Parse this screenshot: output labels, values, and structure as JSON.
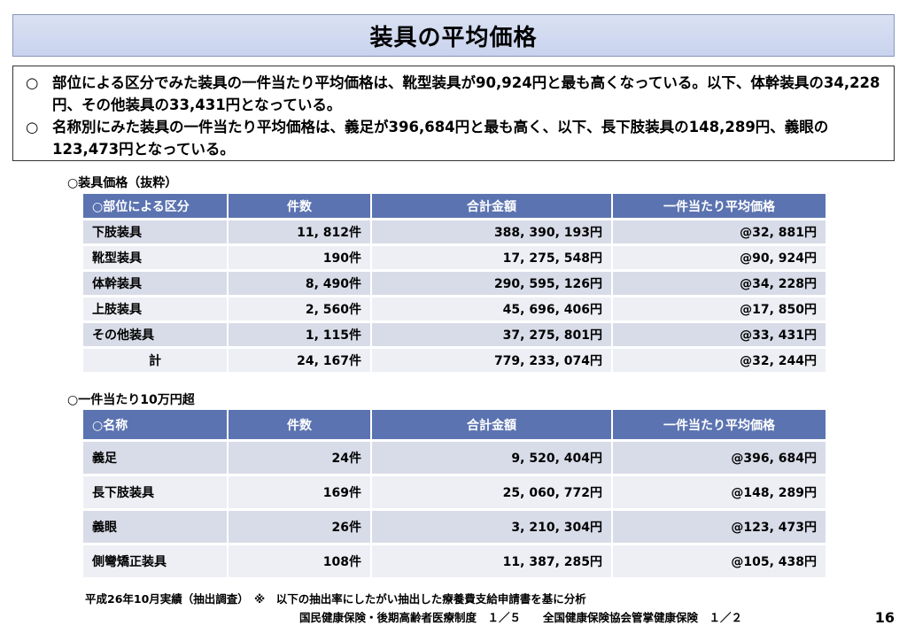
{
  "title": "装具の平均価格",
  "summary": {
    "bullet": "○",
    "items": [
      "部位による区分でみた装具の一件当たり平均価格は、靴型装具が90,924円と最も高くなっている。以下、体幹装具の34,228円、その他装具の33,431円となっている。",
      "名称別にみた装具の一件当たり平均価格は、義足が396,684円と最も高く、以下、長下肢装具の148,289円、義眼の123,473円となっている。"
    ]
  },
  "table1": {
    "label": "○装具価格（抜粋）",
    "headers": [
      "○部位による区分",
      "件数",
      "合計金額",
      "一件当たり平均価格"
    ],
    "rows": [
      [
        "下肢装具",
        "11, 812件",
        "388, 390, 193円",
        "@32, 881円"
      ],
      [
        "靴型装具",
        "190件",
        "17, 275, 548円",
        "@90, 924円"
      ],
      [
        "体幹装具",
        "8, 490件",
        "290, 595, 126円",
        "@34, 228円"
      ],
      [
        "上肢装具",
        "2, 560件",
        "45, 696, 406円",
        "@17, 850円"
      ],
      [
        "その他装具",
        "1, 115件",
        "37, 275, 801円",
        "@33, 431円"
      ],
      [
        "計",
        "24, 167件",
        "779, 233, 074円",
        "@32, 244円"
      ]
    ]
  },
  "table2": {
    "label": "○一件当たり10万円超",
    "headers": [
      "○名称",
      "件数",
      "合計金額",
      "一件当たり平均価格"
    ],
    "rows": [
      [
        "義足",
        "24件",
        "9, 520, 404円",
        "@396, 684円"
      ],
      [
        "長下肢装具",
        "169件",
        "25, 060, 772円",
        "@148, 289円"
      ],
      [
        "義眼",
        "26件",
        "3, 210, 304円",
        "@123, 473円"
      ],
      [
        "側彎矯正装具",
        "108件",
        "11, 387, 285円",
        "@105, 438円"
      ]
    ]
  },
  "footnote": {
    "line1": "平成26年10月実績（抽出調査）　※　以下の抽出率にしたがい抽出した療養費支給申請書を基に分析",
    "line2": "国民健康保険・後期高齢者医療制度　１／５　　全国健康保険協会管掌健康保険　１／２"
  },
  "page_number": "16"
}
